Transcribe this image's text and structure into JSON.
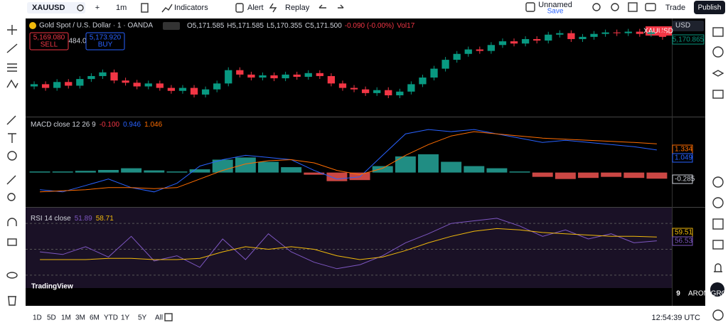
{
  "toolbar": {
    "symbol": "XAUUSD",
    "interval": "1m",
    "indicators": "Indicators",
    "alert": "Alert",
    "replay": "Replay",
    "layout_name": "Unnamed",
    "layout_status": "Save",
    "trade": "Trade",
    "publish": "Publish"
  },
  "legend": {
    "name": "Gold Spot / U.S. Dollar · 1 · OANDA",
    "open": "O5,171.585",
    "high": "H5,171.585",
    "low": "L5,170.355",
    "close": "C5,171.500",
    "change": "-0.090 (-0.00%)",
    "volume": "Vol17",
    "sell_price": "5,169.080",
    "sell": "SELL",
    "spread": "484.0",
    "buy_price": "5,173.920",
    "buy": "BUY"
  },
  "price_scale": {
    "currency": "USD",
    "symbol_tag": "XAUUSD",
    "last_price": "5,170.865"
  },
  "watermark": "TradingView",
  "broker": {
    "logo": "9",
    "name": "ARON GROUPS BROKER"
  },
  "ranges": [
    "1D",
    "5D",
    "1M",
    "3M",
    "6M",
    "YTD",
    "1Y",
    "5Y",
    "All"
  ],
  "clock": "12:54:39 UTC",
  "chart_data": [
    {
      "type": "candlestick",
      "up_color": "#089981",
      "down_color": "#f23645",
      "ylim": [
        5160.5,
        5173
      ],
      "open": [
        5164.2,
        5164.5,
        5164.0,
        5164.8,
        5164.3,
        5165.2,
        5165.6,
        5166.1,
        5165.0,
        5164.7,
        5164.2,
        5164.6,
        5164.0,
        5163.6,
        5164.0,
        5163.1,
        5163.8,
        5164.6,
        5166.4,
        5165.8,
        5165.4,
        5165.7,
        5165.3,
        5165.8,
        5165.5,
        5166.0,
        5165.6,
        5164.6,
        5164.0,
        5163.8,
        5163.3,
        5163.7,
        5163.0,
        5163.5,
        5164.5,
        5165.4,
        5166.6,
        5167.8,
        5168.6,
        5169.2,
        5169.0,
        5169.8,
        5170.3,
        5170.0,
        5170.6,
        5170.4,
        5171.2,
        5171.4,
        5170.6,
        5170.9,
        5171.3,
        5171.5,
        5171.4,
        5171.6,
        5171.3,
        5171.5
      ],
      "close": [
        5164.5,
        5164.0,
        5164.8,
        5164.3,
        5165.2,
        5165.6,
        5166.1,
        5165.0,
        5164.7,
        5164.2,
        5164.6,
        5164.0,
        5163.6,
        5164.0,
        5163.1,
        5163.8,
        5164.6,
        5166.4,
        5165.8,
        5165.4,
        5165.7,
        5165.3,
        5165.8,
        5165.5,
        5166.0,
        5165.6,
        5164.6,
        5164.0,
        5163.8,
        5163.3,
        5163.7,
        5163.0,
        5163.5,
        5164.5,
        5165.4,
        5166.6,
        5167.8,
        5168.6,
        5169.2,
        5169.0,
        5169.8,
        5170.3,
        5170.0,
        5170.6,
        5170.4,
        5171.2,
        5171.4,
        5170.6,
        5170.9,
        5171.3,
        5171.5,
        5171.4,
        5171.6,
        5171.3,
        5171.5,
        5170.9
      ]
    },
    {
      "type": "macd",
      "title": "MACD close 12 26 9",
      "header_values": [
        "-0.100",
        "0.946",
        "1.046"
      ],
      "tags": [
        "1.334",
        "1.049",
        "-0.285"
      ],
      "ylim": [
        -1.5,
        2.4
      ],
      "hist_up_color": "#26a69a",
      "hist_down_color": "#ef5350",
      "series": [
        {
          "name": "MACD",
          "color": "#2962ff",
          "values": [
            -0.8,
            -0.9,
            -0.6,
            -0.3,
            -0.7,
            -0.9,
            -0.5,
            0.3,
            0.6,
            0.8,
            0.7,
            0.6,
            0.1,
            -0.3,
            -0.2,
            0.8,
            1.8,
            2.0,
            1.9,
            2.0,
            1.8,
            1.6,
            1.4,
            1.5,
            1.4,
            1.3,
            1.2,
            1.049
          ]
        },
        {
          "name": "Signal",
          "color": "#ff6d00",
          "values": [
            -0.9,
            -0.85,
            -0.8,
            -0.7,
            -0.7,
            -0.75,
            -0.7,
            -0.3,
            0.1,
            0.4,
            0.55,
            0.6,
            0.45,
            0.1,
            -0.1,
            0.2,
            0.8,
            1.3,
            1.7,
            1.9,
            1.8,
            1.7,
            1.6,
            1.55,
            1.5,
            1.45,
            1.4,
            1.334
          ]
        }
      ],
      "histogram": [
        0.05,
        0.05,
        0.08,
        0.12,
        0.2,
        0.1,
        0.05,
        0.15,
        0.6,
        0.7,
        0.5,
        0.25,
        -0.1,
        -0.4,
        -0.35,
        0.3,
        0.75,
        0.85,
        0.5,
        0.3,
        0.2,
        0.05,
        -0.2,
        -0.3,
        -0.25,
        -0.2,
        -0.25,
        -0.285
      ]
    },
    {
      "type": "rsi",
      "title": "RSI 14 close",
      "header_values": [
        "51.89",
        "58.71"
      ],
      "tags": [
        "59.51",
        "56.53"
      ],
      "ylim": [
        20,
        80
      ],
      "series": [
        {
          "name": "RSI",
          "color": "#7e57c2",
          "values": [
            48,
            46,
            52,
            44,
            60,
            41,
            45,
            36,
            58,
            42,
            62,
            48,
            40,
            35,
            38,
            45,
            55,
            62,
            70,
            72,
            74,
            68,
            60,
            65,
            58,
            62,
            55,
            56.53
          ]
        },
        {
          "name": "RSI-based MA",
          "color": "#f0b90b",
          "values": [
            42,
            42,
            42,
            43,
            43,
            42,
            42,
            43,
            48,
            52,
            50,
            52,
            50,
            45,
            42,
            44,
            49,
            55,
            60,
            64,
            66,
            65,
            63,
            62,
            61,
            60,
            60,
            59.51
          ]
        }
      ]
    }
  ]
}
